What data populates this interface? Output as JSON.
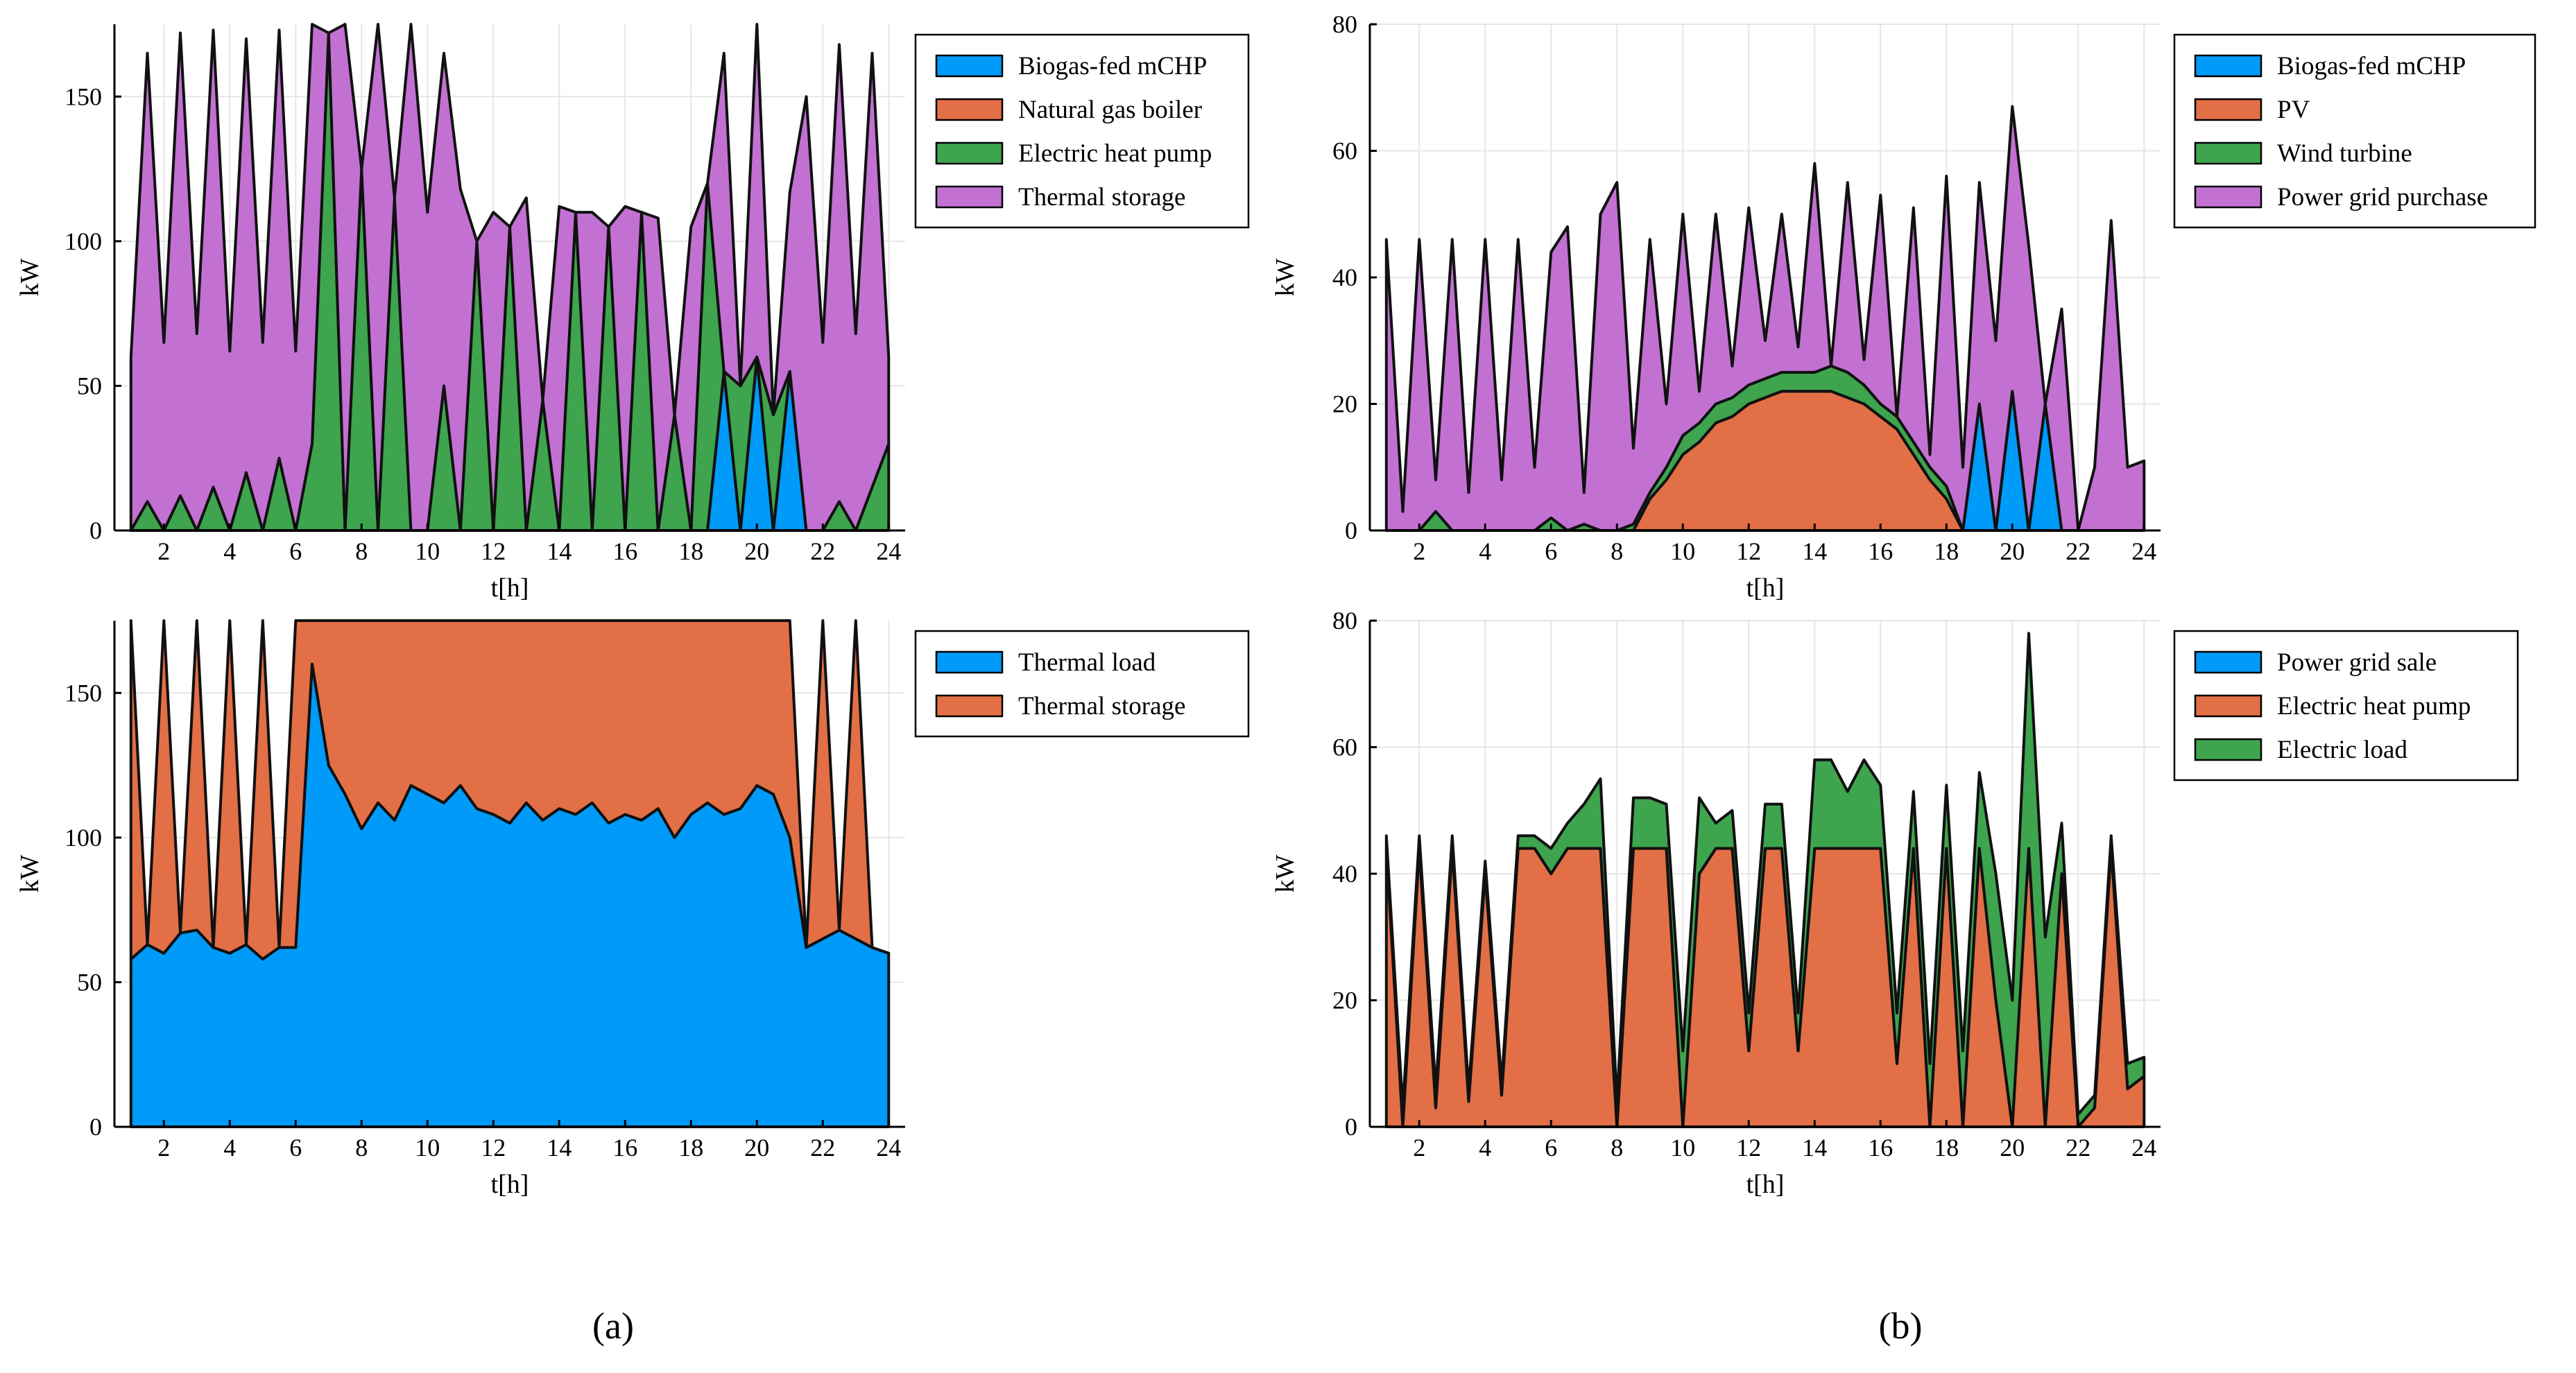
{
  "figure": {
    "panel_labels": [
      "(a)",
      "(b)"
    ],
    "colors": {
      "blue": "#009AF9",
      "orange": "#E26F46",
      "green": "#3EA44E",
      "purple": "#C271D2",
      "outline": "#111111"
    }
  },
  "chart_data": [
    {
      "type": "area",
      "stacked": true,
      "title": "",
      "xlabel": "t[h]",
      "ylabel": "kW",
      "xlim": [
        0.5,
        24.5
      ],
      "ylim": [
        0,
        175
      ],
      "xticks": [
        2,
        4,
        6,
        8,
        10,
        12,
        14,
        16,
        18,
        20,
        22,
        24
      ],
      "yticks": [
        0,
        50,
        100,
        150
      ],
      "grid": true,
      "legend_position": "right",
      "x": [
        1,
        1.5,
        2,
        2.5,
        3,
        3.5,
        4,
        4.5,
        5,
        5.5,
        6,
        6.5,
        7,
        7.5,
        8,
        8.5,
        9,
        9.5,
        10,
        10.5,
        11,
        11.5,
        12,
        12.5,
        13,
        13.5,
        14,
        14.5,
        15,
        15.5,
        16,
        16.5,
        17,
        17.5,
        18,
        18.5,
        19,
        19.5,
        20,
        20.5,
        21,
        21.5,
        22,
        22.5,
        23,
        23.5,
        24
      ],
      "series": [
        {
          "name": "Biogas-fed mCHP",
          "color": "#009AF9",
          "values": [
            0,
            0,
            0,
            0,
            0,
            0,
            0,
            0,
            0,
            0,
            0,
            0,
            0,
            0,
            0,
            0,
            0,
            0,
            0,
            0,
            0,
            0,
            0,
            0,
            0,
            0,
            0,
            0,
            0,
            0,
            0,
            0,
            0,
            0,
            0,
            0,
            55,
            0,
            60,
            0,
            55,
            0,
            0,
            0,
            0,
            0,
            0
          ]
        },
        {
          "name": "Natural gas boiler",
          "color": "#E26F46",
          "values": [
            0,
            0,
            0,
            0,
            0,
            0,
            0,
            0,
            0,
            0,
            0,
            0,
            0,
            0,
            0,
            0,
            0,
            0,
            0,
            0,
            0,
            0,
            0,
            0,
            0,
            0,
            0,
            0,
            0,
            0,
            0,
            0,
            0,
            0,
            0,
            0,
            0,
            0,
            0,
            0,
            0,
            0,
            0,
            0,
            0,
            0,
            0
          ]
        },
        {
          "name": "Electric heat pump",
          "color": "#3EA44E",
          "values": [
            0,
            10,
            0,
            12,
            0,
            15,
            0,
            20,
            0,
            25,
            0,
            30,
            172,
            0,
            125,
            0,
            115,
            0,
            0,
            50,
            0,
            100,
            0,
            105,
            0,
            45,
            0,
            110,
            0,
            105,
            0,
            110,
            0,
            40,
            0,
            120,
            0,
            50,
            0,
            40,
            0,
            0,
            0,
            10,
            0,
            15,
            30
          ]
        },
        {
          "name": "Thermal storage",
          "color": "#C271D2",
          "values": [
            60,
            155,
            65,
            160,
            68,
            158,
            62,
            150,
            65,
            148,
            62,
            145,
            0,
            175,
            0,
            175,
            0,
            175,
            110,
            115,
            118,
            0,
            110,
            0,
            115,
            0,
            112,
            0,
            110,
            0,
            112,
            0,
            108,
            0,
            105,
            0,
            110,
            0,
            115,
            0,
            62,
            150,
            65,
            158,
            68,
            150,
            30
          ]
        }
      ]
    },
    {
      "type": "area",
      "stacked": true,
      "title": "",
      "xlabel": "t[h]",
      "ylabel": "kW",
      "xlim": [
        0.5,
        24.5
      ],
      "ylim": [
        0,
        80
      ],
      "xticks": [
        2,
        4,
        6,
        8,
        10,
        12,
        14,
        16,
        18,
        20,
        22,
        24
      ],
      "yticks": [
        0,
        20,
        40,
        60,
        80
      ],
      "grid": true,
      "legend_position": "right",
      "x": [
        1,
        1.5,
        2,
        2.5,
        3,
        3.5,
        4,
        4.5,
        5,
        5.5,
        6,
        6.5,
        7,
        7.5,
        8,
        8.5,
        9,
        9.5,
        10,
        10.5,
        11,
        11.5,
        12,
        12.5,
        13,
        13.5,
        14,
        14.5,
        15,
        15.5,
        16,
        16.5,
        17,
        17.5,
        18,
        18.5,
        19,
        19.5,
        20,
        20.5,
        21,
        21.5,
        22,
        22.5,
        23,
        23.5,
        24
      ],
      "series": [
        {
          "name": "Biogas-fed mCHP",
          "color": "#009AF9",
          "values": [
            0,
            0,
            0,
            0,
            0,
            0,
            0,
            0,
            0,
            0,
            0,
            0,
            0,
            0,
            0,
            0,
            0,
            0,
            0,
            0,
            0,
            0,
            0,
            0,
            0,
            0,
            0,
            0,
            0,
            0,
            0,
            0,
            0,
            0,
            0,
            0,
            20,
            0,
            22,
            0,
            20,
            0,
            0,
            0,
            0,
            0,
            0
          ]
        },
        {
          "name": "PV",
          "color": "#E26F46",
          "values": [
            0,
            0,
            0,
            0,
            0,
            0,
            0,
            0,
            0,
            0,
            0,
            0,
            0,
            0,
            0,
            0,
            5,
            8,
            12,
            14,
            17,
            18,
            20,
            21,
            22,
            22,
            22,
            22,
            21,
            20,
            18,
            16,
            12,
            8,
            5,
            0,
            0,
            0,
            0,
            0,
            0,
            0,
            0,
            0,
            0,
            0,
            0
          ]
        },
        {
          "name": "Wind turbine",
          "color": "#3EA44E",
          "values": [
            0,
            0,
            0,
            3,
            0,
            0,
            0,
            0,
            0,
            0,
            2,
            0,
            1,
            0,
            0,
            1,
            1,
            2,
            3,
            3,
            3,
            3,
            3,
            3,
            3,
            3,
            3,
            4,
            4,
            3,
            2,
            2,
            2,
            2,
            2,
            0,
            0,
            0,
            0,
            0,
            0,
            0,
            0,
            0,
            0,
            0,
            0
          ]
        },
        {
          "name": "Power grid purchase",
          "color": "#C271D2",
          "values": [
            46,
            3,
            46,
            5,
            46,
            6,
            46,
            8,
            46,
            10,
            42,
            48,
            5,
            50,
            55,
            12,
            40,
            10,
            35,
            5,
            30,
            5,
            28,
            6,
            25,
            4,
            33,
            0,
            30,
            4,
            33,
            0,
            37,
            2,
            49,
            10,
            35,
            30,
            45,
            45,
            0,
            35,
            0,
            10,
            49,
            10,
            11
          ]
        }
      ]
    },
    {
      "type": "area",
      "stacked": true,
      "title": "",
      "xlabel": "t[h]",
      "ylabel": "kW",
      "xlim": [
        0.5,
        24.5
      ],
      "ylim": [
        0,
        175
      ],
      "xticks": [
        2,
        4,
        6,
        8,
        10,
        12,
        14,
        16,
        18,
        20,
        22,
        24
      ],
      "yticks": [
        0,
        50,
        100,
        150
      ],
      "grid": true,
      "legend_position": "right",
      "x": [
        1,
        1.5,
        2,
        2.5,
        3,
        3.5,
        4,
        4.5,
        5,
        5.5,
        6,
        6.5,
        7,
        7.5,
        8,
        8.5,
        9,
        9.5,
        10,
        10.5,
        11,
        11.5,
        12,
        12.5,
        13,
        13.5,
        14,
        14.5,
        15,
        15.5,
        16,
        16.5,
        17,
        17.5,
        18,
        18.5,
        19,
        19.5,
        20,
        20.5,
        21,
        21.5,
        22,
        22.5,
        23,
        23.5,
        24
      ],
      "series": [
        {
          "name": "Thermal load",
          "color": "#009AF9",
          "values": [
            58,
            63,
            60,
            67,
            68,
            62,
            60,
            63,
            58,
            62,
            62,
            160,
            125,
            115,
            103,
            112,
            106,
            118,
            115,
            112,
            118,
            110,
            108,
            105,
            112,
            106,
            110,
            108,
            112,
            105,
            108,
            106,
            110,
            100,
            108,
            112,
            108,
            110,
            118,
            115,
            100,
            62,
            65,
            68,
            65,
            62,
            60
          ]
        },
        {
          "name": "Thermal storage",
          "color": "#E26F46",
          "values": [
            117,
            0,
            115,
            0,
            107,
            0,
            115,
            0,
            117,
            0,
            113,
            15,
            50,
            60,
            72,
            63,
            69,
            57,
            60,
            63,
            57,
            65,
            67,
            70,
            63,
            69,
            65,
            67,
            63,
            70,
            67,
            69,
            65,
            75,
            67,
            63,
            67,
            65,
            57,
            60,
            75,
            0,
            110,
            0,
            110,
            0,
            0
          ]
        }
      ]
    },
    {
      "type": "area",
      "stacked": true,
      "title": "",
      "xlabel": "t[h]",
      "ylabel": "kW",
      "xlim": [
        0.5,
        24.5
      ],
      "ylim": [
        0,
        80
      ],
      "xticks": [
        2,
        4,
        6,
        8,
        10,
        12,
        14,
        16,
        18,
        20,
        22,
        24
      ],
      "yticks": [
        0,
        20,
        40,
        60,
        80
      ],
      "grid": true,
      "legend_position": "right",
      "x": [
        1,
        1.5,
        2,
        2.5,
        3,
        3.5,
        4,
        4.5,
        5,
        5.5,
        6,
        6.5,
        7,
        7.5,
        8,
        8.5,
        9,
        9.5,
        10,
        10.5,
        11,
        11.5,
        12,
        12.5,
        13,
        13.5,
        14,
        14.5,
        15,
        15.5,
        16,
        16.5,
        17,
        17.5,
        18,
        18.5,
        19,
        19.5,
        20,
        20.5,
        21,
        21.5,
        22,
        22.5,
        23,
        23.5,
        24
      ],
      "series": [
        {
          "name": "Power grid sale",
          "color": "#009AF9",
          "values": [
            0,
            0,
            0,
            0,
            0,
            0,
            0,
            0,
            0,
            0,
            0,
            0,
            0,
            0,
            0,
            0,
            0,
            0,
            0,
            0,
            0,
            0,
            0,
            0,
            0,
            0,
            0,
            0,
            0,
            0,
            0,
            0,
            0,
            0,
            0,
            0,
            0,
            0,
            0,
            0,
            0,
            0,
            0,
            0,
            0,
            0,
            0
          ]
        },
        {
          "name": "Electric heat pump",
          "color": "#E26F46",
          "values": [
            44,
            0,
            44,
            3,
            44,
            4,
            40,
            5,
            44,
            44,
            40,
            44,
            44,
            44,
            0,
            44,
            44,
            44,
            0,
            40,
            44,
            44,
            12,
            44,
            44,
            12,
            44,
            44,
            44,
            44,
            44,
            10,
            44,
            0,
            44,
            0,
            44,
            20,
            0,
            44,
            0,
            40,
            0,
            3,
            44,
            6,
            8
          ]
        },
        {
          "name": "Electric load",
          "color": "#3EA44E",
          "values": [
            2,
            3,
            2,
            3,
            2,
            2,
            2,
            2,
            2,
            2,
            4,
            4,
            7,
            11,
            4,
            8,
            8,
            7,
            12,
            12,
            4,
            6,
            6,
            7,
            7,
            6,
            14,
            14,
            9,
            14,
            10,
            8,
            9,
            10,
            10,
            12,
            12,
            20,
            20,
            34,
            30,
            8,
            2,
            2,
            2,
            4,
            3
          ]
        }
      ]
    }
  ]
}
